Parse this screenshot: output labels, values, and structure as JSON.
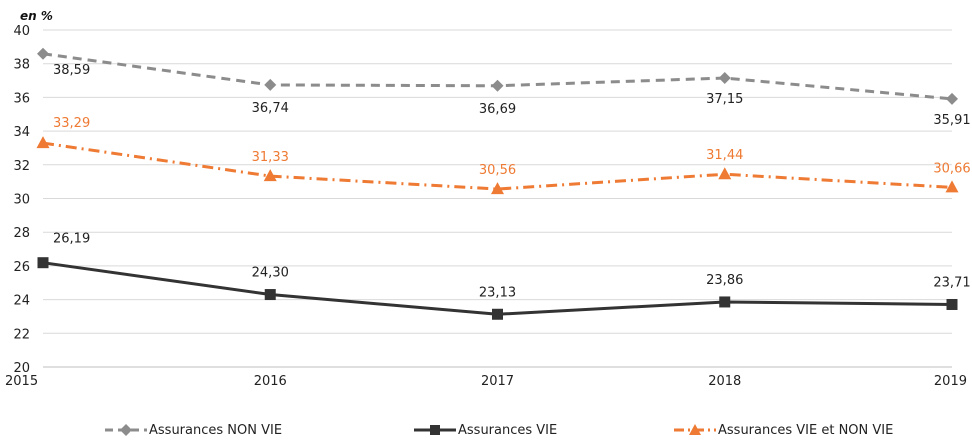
{
  "chart_data": {
    "type": "line",
    "unit_label": "en %",
    "x": [
      "2015",
      "2016",
      "2017",
      "2018",
      "2019"
    ],
    "ylim": [
      20,
      40
    ],
    "yticks": [
      "20",
      "22",
      "24",
      "26",
      "28",
      "30",
      "32",
      "34",
      "36",
      "38",
      "40"
    ],
    "grid": true,
    "legend_position": "bottom",
    "series": [
      {
        "name": "Assurances NON VIE",
        "values": [
          38.59,
          36.74,
          36.69,
          37.15,
          35.91
        ],
        "labels": [
          "38,59",
          "36,74",
          "36,69",
          "37,15",
          "35,91"
        ],
        "color": "#8c8c8c",
        "marker": "diamond",
        "line_style": "dashed"
      },
      {
        "name": "Assurances VIE",
        "values": [
          26.19,
          24.3,
          23.13,
          23.86,
          23.71
        ],
        "labels": [
          "26,19",
          "24,30",
          "23,13",
          "23,86",
          "23,71"
        ],
        "color": "#333333",
        "marker": "square",
        "line_style": "solid"
      },
      {
        "name": "Assurances VIE et NON VIE",
        "values": [
          33.29,
          31.33,
          30.56,
          31.44,
          30.66
        ],
        "labels": [
          "33,29",
          "31,33",
          "30,56",
          "31,44",
          "30,66"
        ],
        "color": "#ee7a33",
        "marker": "triangle",
        "line_style": "dash-dot"
      }
    ]
  }
}
